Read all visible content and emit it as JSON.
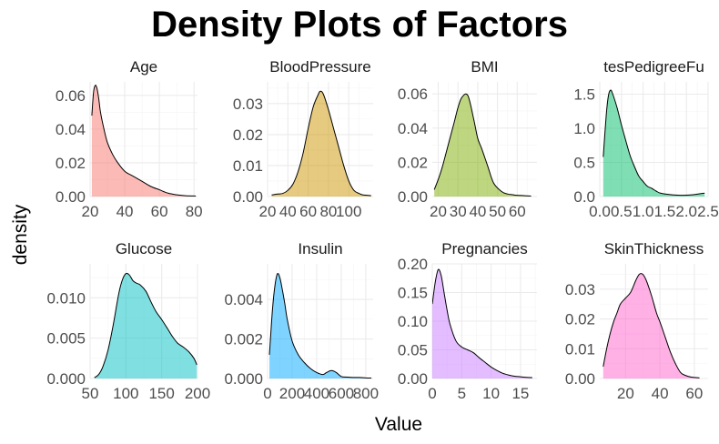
{
  "chart_data": {
    "type": "area",
    "title": "Density Plots of Factors",
    "xlabel": "Value",
    "ylabel": "density",
    "grid": true,
    "legend": "none",
    "panels": [
      {
        "name": "Age",
        "color": "#F8766D",
        "xlim": [
          20,
          82
        ],
        "ylim": [
          0,
          0.068
        ],
        "xticks": [
          "20",
          "40",
          "60",
          "80"
        ],
        "xtick_values": [
          20,
          40,
          60,
          80
        ],
        "yticks": [
          "0.00",
          "0.02",
          "0.04",
          "0.06"
        ],
        "ytick_values": [
          0,
          0.02,
          0.04,
          0.06
        ],
        "x": [
          21,
          22,
          23,
          24,
          25,
          26,
          28,
          30,
          33,
          36,
          40,
          45,
          50,
          55,
          60,
          65,
          70,
          75,
          81
        ],
        "y": [
          0.048,
          0.062,
          0.066,
          0.064,
          0.058,
          0.05,
          0.04,
          0.032,
          0.025,
          0.02,
          0.015,
          0.012,
          0.009,
          0.006,
          0.004,
          0.002,
          0.001,
          0.0005,
          0.0003
        ]
      },
      {
        "name": "BloodPressure",
        "color": "#CD9600",
        "xlim": [
          20,
          124
        ],
        "ylim": [
          0,
          0.037
        ],
        "xticks": [
          "20",
          "40",
          "60",
          "80",
          "100"
        ],
        "xtick_values": [
          20,
          40,
          60,
          80,
          100
        ],
        "yticks": [
          "0.00",
          "0.01",
          "0.02",
          "0.03"
        ],
        "ytick_values": [
          0,
          0.01,
          0.02,
          0.03
        ],
        "x": [
          24,
          30,
          35,
          40,
          45,
          50,
          55,
          60,
          65,
          70,
          72,
          75,
          80,
          85,
          90,
          95,
          100,
          105,
          110,
          114,
          122
        ],
        "y": [
          0.0005,
          0.0008,
          0.001,
          0.002,
          0.004,
          0.008,
          0.014,
          0.022,
          0.029,
          0.033,
          0.034,
          0.033,
          0.028,
          0.022,
          0.016,
          0.01,
          0.005,
          0.002,
          0.001,
          0.0005,
          0.0003
        ]
      },
      {
        "name": "BMI",
        "color": "#7CAE00",
        "xlim": [
          17,
          70
        ],
        "ylim": [
          0,
          0.067
        ],
        "xticks": [
          "20",
          "30",
          "40",
          "50",
          "60"
        ],
        "xtick_values": [
          20,
          30,
          40,
          50,
          60
        ],
        "yticks": [
          "0.00",
          "0.02",
          "0.04",
          "0.06"
        ],
        "ytick_values": [
          0,
          0.02,
          0.04,
          0.06
        ],
        "x": [
          18,
          20,
          22,
          25,
          28,
          30,
          32,
          35,
          38,
          40,
          42,
          45,
          48,
          52,
          55,
          58,
          60,
          65,
          67
        ],
        "y": [
          0.004,
          0.01,
          0.017,
          0.03,
          0.043,
          0.052,
          0.058,
          0.059,
          0.045,
          0.034,
          0.028,
          0.018,
          0.008,
          0.003,
          0.0015,
          0.001,
          0.0007,
          0.0004,
          0.0003
        ]
      },
      {
        "name": "tesPedigreeFu",
        "color": "#00BE67",
        "xlim": [
          0,
          2.5
        ],
        "ylim": [
          0,
          1.68
        ],
        "xticks": [
          "0.0",
          "0.5",
          "1.0",
          "1.5",
          "2.0",
          "2.5"
        ],
        "xtick_values": [
          0,
          0.5,
          1,
          1.5,
          2,
          2.5
        ],
        "yticks": [
          "0.0",
          "0.5",
          "1.0",
          "1.5"
        ],
        "ytick_values": [
          0,
          0.5,
          1,
          1.5
        ],
        "x": [
          0.08,
          0.15,
          0.2,
          0.25,
          0.3,
          0.4,
          0.5,
          0.6,
          0.7,
          0.8,
          0.9,
          1.0,
          1.1,
          1.2,
          1.3,
          1.4,
          1.6,
          1.8,
          2.0,
          2.2,
          2.42
        ],
        "y": [
          0.58,
          1.2,
          1.48,
          1.56,
          1.5,
          1.3,
          1.05,
          0.82,
          0.6,
          0.44,
          0.3,
          0.22,
          0.15,
          0.12,
          0.08,
          0.05,
          0.03,
          0.02,
          0.02,
          0.03,
          0.05
        ]
      },
      {
        "name": "Glucose",
        "color": "#00BFC4",
        "xlim": [
          50,
          200
        ],
        "ylim": [
          0,
          0.0142
        ],
        "xticks": [
          "50",
          "100",
          "150",
          "200"
        ],
        "xtick_values": [
          50,
          100,
          150,
          200
        ],
        "yticks": [
          "0.000",
          "0.005",
          "0.010"
        ],
        "ytick_values": [
          0,
          0.005,
          0.01
        ],
        "x": [
          56,
          62,
          68,
          75,
          82,
          90,
          95,
          100,
          105,
          110,
          115,
          120,
          128,
          135,
          142,
          150,
          158,
          165,
          172,
          180,
          188,
          195,
          199
        ],
        "y": [
          0.0001,
          0.0005,
          0.0015,
          0.0035,
          0.0065,
          0.0105,
          0.0122,
          0.013,
          0.0128,
          0.0121,
          0.0118,
          0.0116,
          0.0108,
          0.0095,
          0.0083,
          0.0073,
          0.0062,
          0.0052,
          0.0044,
          0.0039,
          0.0033,
          0.0025,
          0.0017
        ]
      },
      {
        "name": "Insulin",
        "color": "#00A9FF",
        "xlim": [
          0,
          860
        ],
        "ylim": [
          0,
          0.0058
        ],
        "xticks": [
          "0",
          "200",
          "400",
          "600",
          "800"
        ],
        "xtick_values": [
          0,
          200,
          400,
          600,
          800
        ],
        "yticks": [
          "0.000",
          "0.002",
          "0.004"
        ],
        "ytick_values": [
          0,
          0.002,
          0.004
        ],
        "x": [
          15,
          40,
          60,
          80,
          100,
          120,
          140,
          160,
          200,
          250,
          300,
          350,
          400,
          450,
          480,
          520,
          560,
          600,
          650,
          700,
          750,
          800,
          846
        ],
        "y": [
          0.0012,
          0.0035,
          0.0047,
          0.0053,
          0.0051,
          0.0045,
          0.0038,
          0.003,
          0.0019,
          0.0012,
          0.0008,
          0.0005,
          0.0003,
          0.0002,
          0.0003,
          0.0004,
          0.0003,
          0.0001,
          7e-05,
          5e-05,
          5e-05,
          3e-05,
          2e-05
        ]
      },
      {
        "name": "Pregnancies",
        "color": "#C77CFF",
        "xlim": [
          0,
          17.8
        ],
        "ylim": [
          0,
          0.2
        ],
        "xticks": [
          "0",
          "5",
          "10",
          "15"
        ],
        "xtick_values": [
          0,
          5,
          10,
          15
        ],
        "yticks": [
          "0.00",
          "0.05",
          "0.10",
          "0.15",
          "0.20"
        ],
        "ytick_values": [
          0,
          0.05,
          0.1,
          0.15,
          0.2
        ],
        "x": [
          0,
          0.5,
          1,
          1.5,
          2,
          2.5,
          3,
          4,
          5,
          6,
          7,
          8,
          9,
          10,
          11,
          12,
          13,
          14,
          15,
          16,
          17
        ],
        "y": [
          0.13,
          0.168,
          0.19,
          0.18,
          0.15,
          0.12,
          0.095,
          0.066,
          0.055,
          0.05,
          0.045,
          0.036,
          0.028,
          0.02,
          0.014,
          0.009,
          0.006,
          0.004,
          0.003,
          0.002,
          0.0015
        ]
      },
      {
        "name": "SkinThickness",
        "color": "#FF61CC",
        "xlim": [
          5,
          68
        ],
        "ylim": [
          0,
          0.0385
        ],
        "xticks": [
          "20",
          "40",
          "60"
        ],
        "xtick_values": [
          20,
          40,
          60
        ],
        "yticks": [
          "0.00",
          "0.01",
          "0.02",
          "0.03"
        ],
        "ytick_values": [
          0,
          0.01,
          0.02,
          0.03
        ],
        "x": [
          7,
          9,
          11,
          13,
          15,
          17,
          20,
          23,
          26,
          28,
          30,
          32,
          35,
          38,
          40,
          43,
          46,
          49,
          52,
          55,
          58,
          61,
          63
        ],
        "y": [
          0.004,
          0.01,
          0.015,
          0.019,
          0.022,
          0.025,
          0.027,
          0.029,
          0.033,
          0.035,
          0.035,
          0.033,
          0.028,
          0.022,
          0.019,
          0.014,
          0.009,
          0.005,
          0.002,
          0.001,
          0.0005,
          0.0003,
          0.0002
        ]
      }
    ]
  }
}
